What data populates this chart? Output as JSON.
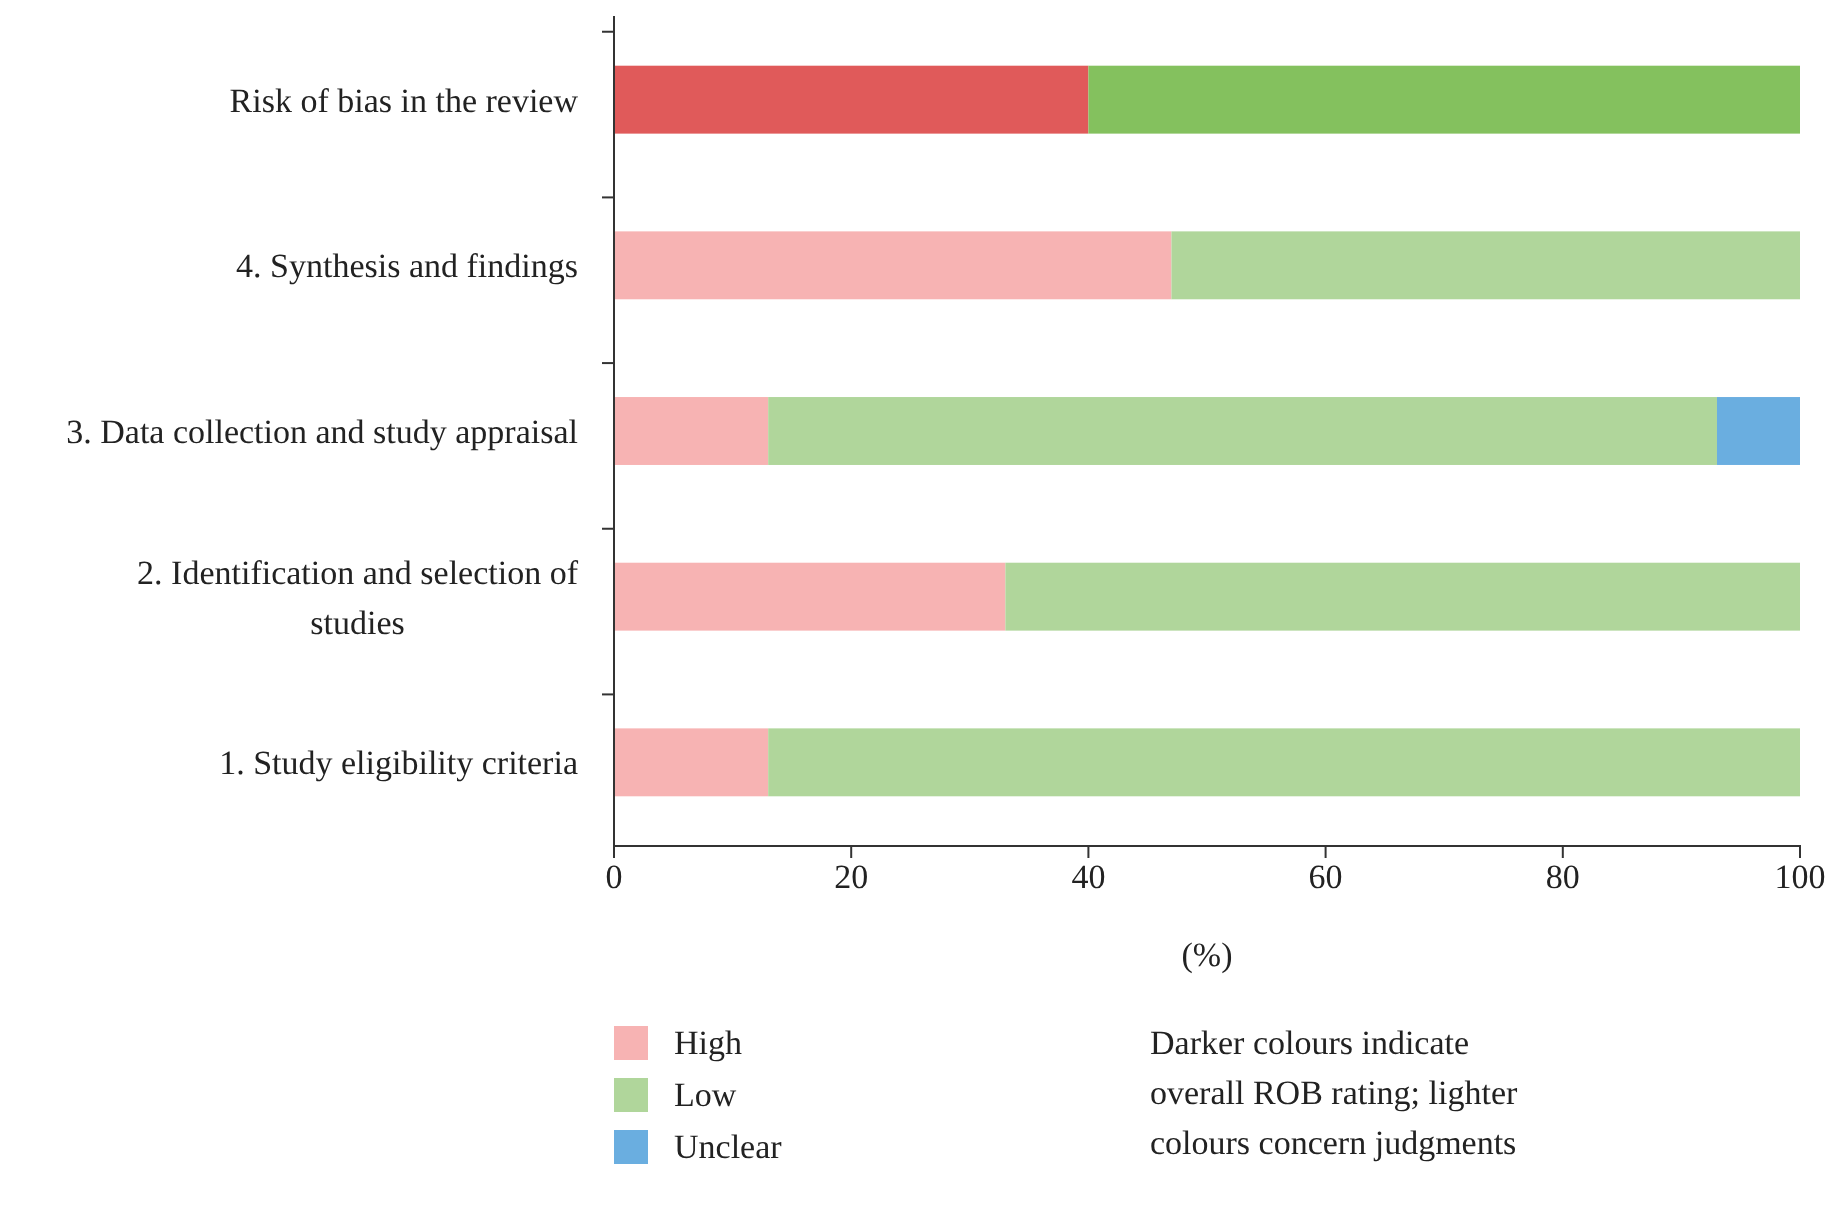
{
  "chart_data": {
    "type": "bar",
    "orientation": "horizontal",
    "stacked": true,
    "xlabel": "(%)",
    "categories": [
      "Risk of bias in the review",
      "4. Synthesis and findings",
      "3. Data collection and study appraisal",
      "2. Identification and selection of studies",
      "1. Study eligibility criteria"
    ],
    "series": [
      {
        "name": "High",
        "color": "#f7b3b3",
        "colors": [
          "#e05a5a",
          "#f7b3b3",
          "#f7b3b3",
          "#f7b3b3",
          "#f7b3b3"
        ],
        "values": [
          40,
          47,
          13,
          33,
          13
        ]
      },
      {
        "name": "Low",
        "color": "#b0d69b",
        "colors": [
          "#84c15e",
          "#b0d69b",
          "#b0d69b",
          "#b0d69b",
          "#b0d69b"
        ],
        "values": [
          60,
          53,
          80,
          67,
          87
        ]
      },
      {
        "name": "Unclear",
        "color": "#6aaee0",
        "colors": [
          "#6aaee0",
          "#6aaee0",
          "#6aaee0",
          "#6aaee0",
          "#6aaee0"
        ],
        "values": [
          0,
          0,
          7,
          0,
          0
        ]
      }
    ],
    "xlim": [
      0,
      100
    ],
    "xticks": [
      0,
      20,
      40,
      60,
      80,
      100
    ],
    "grid": false,
    "legend": "bottom left",
    "annotations": [
      "Darker colours indicate overall ROB rating; lighter colours concern judgments"
    ]
  }
}
